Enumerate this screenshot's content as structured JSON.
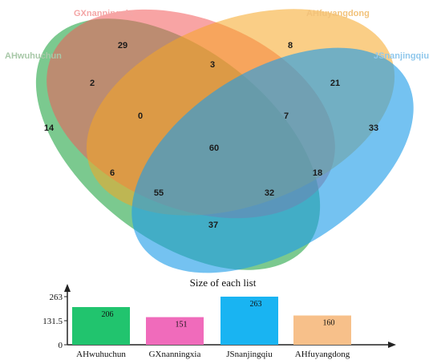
{
  "sets": [
    {
      "name": "AHwuhuchun",
      "color": "#2aa84a"
    },
    {
      "name": "GXnanningxia",
      "color": "#f25a5a"
    },
    {
      "name": "AHfuyangdong",
      "color": "#f6a623"
    },
    {
      "name": "JSnanjingqiu",
      "color": "#1e9de8"
    }
  ],
  "regions": [
    {
      "id": "gx-only",
      "value": "29"
    },
    {
      "id": "ah-fy-only",
      "value": "8"
    },
    {
      "id": "gx-fy",
      "value": "3"
    },
    {
      "id": "wu-gx",
      "value": "2"
    },
    {
      "id": "fy-js",
      "value": "21"
    },
    {
      "id": "wu-gx-fy",
      "value": "0"
    },
    {
      "id": "gx-fy-js",
      "value": "7"
    },
    {
      "id": "wu-only",
      "value": "14"
    },
    {
      "id": "js-only",
      "value": "33"
    },
    {
      "id": "all-four",
      "value": "60"
    },
    {
      "id": "wu-fy",
      "value": "6"
    },
    {
      "id": "gx-js",
      "value": "18"
    },
    {
      "id": "wu-fy-js",
      "value": "55"
    },
    {
      "id": "wu-gx-js",
      "value": "32"
    },
    {
      "id": "wu-js",
      "value": "37"
    }
  ],
  "chart_data": {
    "type": "bar",
    "title": "Size of each list",
    "categories": [
      "AHwuhuchun",
      "GXnanningxia",
      "JSnanjingqiu",
      "AHfuyangdong"
    ],
    "values": [
      206,
      151,
      263,
      160
    ],
    "value_labels": [
      "206",
      "151",
      "263",
      "160"
    ],
    "yticks": [
      0,
      131.5,
      263
    ],
    "ytick_labels": [
      "0",
      "131.5",
      "263"
    ],
    "ylim": [
      0,
      263
    ],
    "colors": [
      "#21c46e",
      "#f06bbb",
      "#19b4f2",
      "#f7c08a"
    ],
    "legend": "none",
    "grid": false
  }
}
